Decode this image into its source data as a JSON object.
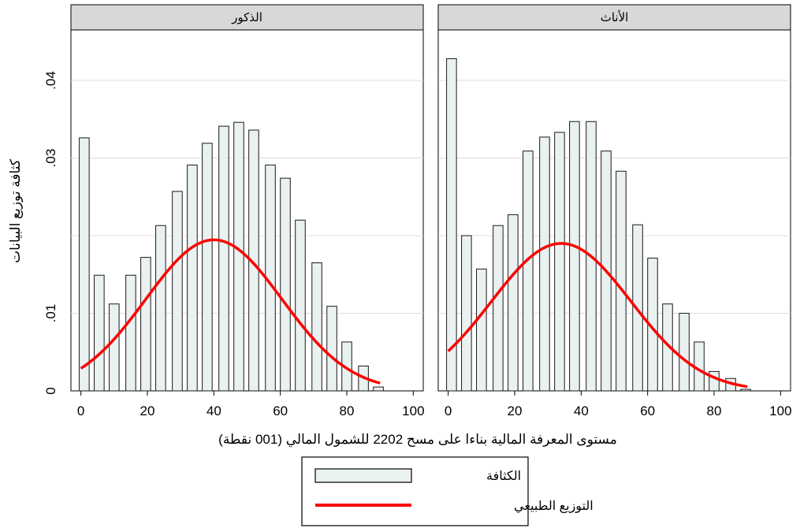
{
  "chart_data": {
    "type": "bar",
    "xlabel": "مستوى المعرفة المالية بناءا على مسح 2202 للشمول المالي (001 نقطة)",
    "ylabel": "كثافة توزيع البيانات",
    "xlim": [
      -3,
      103
    ],
    "ylim": [
      0,
      0.0465
    ],
    "xticks": [
      0,
      20,
      40,
      60,
      80,
      100
    ],
    "xtick_labels": [
      "0",
      "20",
      "40",
      "60",
      "80",
      "100"
    ],
    "yticks": [
      0,
      0.01,
      0.02,
      0.03,
      0.04
    ],
    "ytick_labels": [
      "0",
      ".01",
      "",
      ".03",
      ".04"
    ],
    "grid": true,
    "bin_width": 4.8,
    "legend": {
      "position": "bottom",
      "entries": [
        {
          "label": "الكثافة",
          "kind": "box"
        },
        {
          "label": "التوزيع الطبيعي",
          "kind": "line"
        }
      ]
    },
    "colors": {
      "bar_fill": "#e9f1f1",
      "bar_stroke": "#1a1a1a",
      "curve": "#ff0000",
      "facet_header": "#d8d8d8",
      "grid": "#dcdcdc"
    },
    "panels": [
      {
        "title": "الذكور",
        "bins_x": [
          1,
          5.5,
          10,
          15,
          19.5,
          24,
          29,
          33.5,
          38,
          43,
          47.5,
          52,
          57,
          61.5,
          66,
          71,
          75.5,
          80,
          85,
          89.5
        ],
        "values": [
          0.0326,
          0.0149,
          0.0112,
          0.0149,
          0.0172,
          0.0213,
          0.0257,
          0.0291,
          0.0319,
          0.0341,
          0.0346,
          0.0336,
          0.0291,
          0.0274,
          0.022,
          0.0165,
          0.0109,
          0.0063,
          0.0032,
          0.0005
        ],
        "normal": {
          "mean": 40,
          "sd": 20.5,
          "x_range": [
            0,
            90
          ]
        }
      },
      {
        "title": "الأناث",
        "bins_x": [
          1,
          5.5,
          10,
          15,
          19.5,
          24,
          29,
          33.5,
          38,
          43,
          47.5,
          52,
          57,
          61.5,
          66,
          71,
          75.5,
          80,
          85,
          89.5
        ],
        "values": [
          0.0428,
          0.02,
          0.0157,
          0.0213,
          0.0227,
          0.0309,
          0.0327,
          0.0333,
          0.0347,
          0.0347,
          0.0309,
          0.0283,
          0.0214,
          0.0171,
          0.0112,
          0.01,
          0.0063,
          0.0025,
          0.0016,
          0.0002
        ],
        "normal": {
          "mean": 34,
          "sd": 21,
          "x_range": [
            0,
            90
          ]
        }
      }
    ]
  }
}
